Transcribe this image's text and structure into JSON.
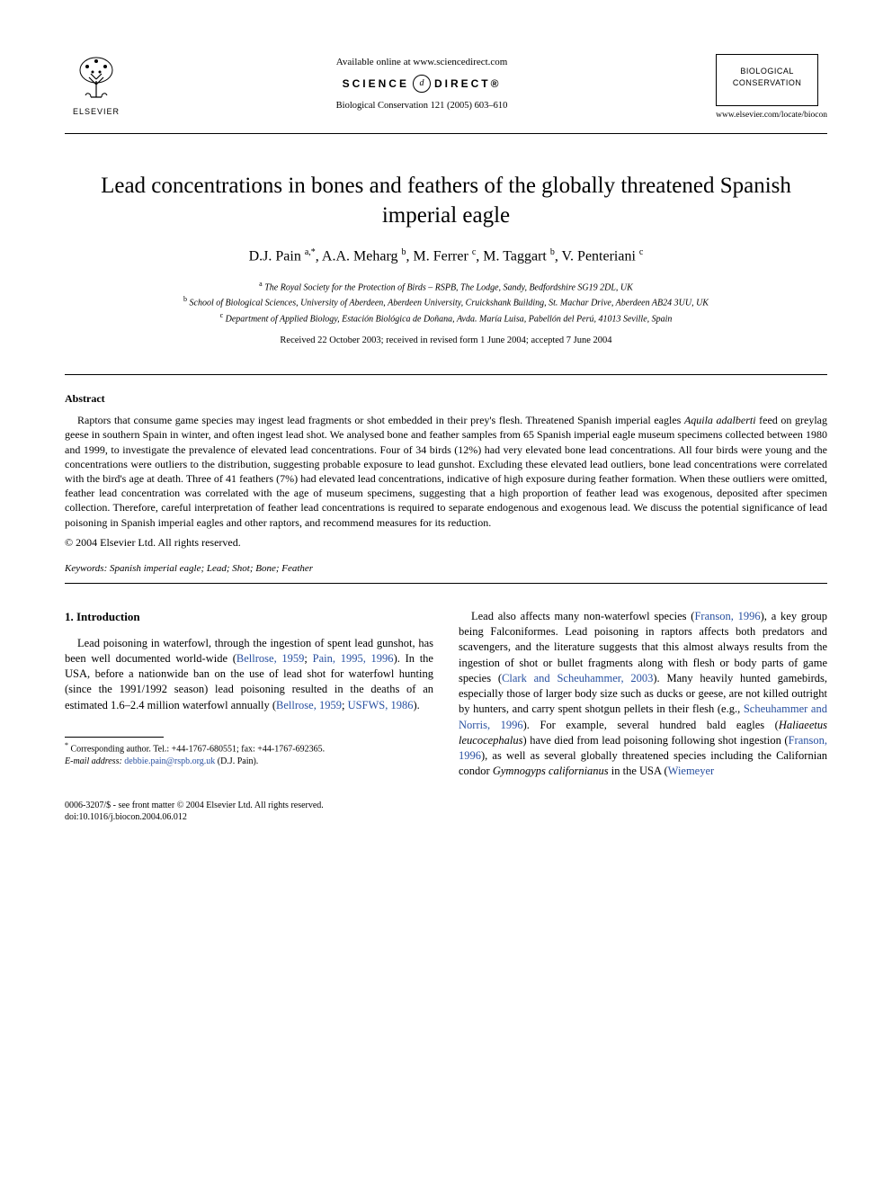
{
  "header": {
    "publisher_name": "ELSEVIER",
    "available_online": "Available online at www.sciencedirect.com",
    "sd_left": "SCIENCE",
    "sd_at": "d",
    "sd_right": "DIRECT®",
    "journal_ref": "Biological Conservation 121 (2005) 603–610",
    "journal_box_line1": "BIOLOGICAL",
    "journal_box_line2": "CONSERVATION",
    "journal_url": "www.elsevier.com/locate/biocon"
  },
  "title": "Lead concentrations in bones and feathers of the globally threatened Spanish imperial eagle",
  "authors_html": "D.J. Pain <sup>a,*</sup>, A.A. Meharg <sup>b</sup>, M. Ferrer <sup>c</sup>, M. Taggart <sup>b</sup>, V. Penteriani <sup>c</sup>",
  "affiliations": {
    "a": "The Royal Society for the Protection of Birds – RSPB, The Lodge, Sandy, Bedfordshire SG19 2DL, UK",
    "b": "School of Biological Sciences, University of Aberdeen, Aberdeen University, Cruickshank Building, St. Machar Drive, Aberdeen AB24 3UU, UK",
    "c": "Department of Applied Biology, Estación Biológica de Doñana, Avda. María Luisa, Pabellón del Perú, 41013 Seville, Spain"
  },
  "received": "Received 22 October 2003; received in revised form 1 June 2004; accepted 7 June 2004",
  "abstract": {
    "heading": "Abstract",
    "body": "Raptors that consume game species may ingest lead fragments or shot embedded in their prey's flesh. Threatened Spanish imperial eagles Aquila adalberti feed on greylag geese in southern Spain in winter, and often ingest lead shot. We analysed bone and feather samples from 65 Spanish imperial eagle museum specimens collected between 1980 and 1999, to investigate the prevalence of elevated lead concentrations. Four of 34 birds (12%) had very elevated bone lead concentrations. All four birds were young and the concentrations were outliers to the distribution, suggesting probable exposure to lead gunshot. Excluding these elevated lead outliers, bone lead concentrations were correlated with the bird's age at death. Three of 41 feathers (7%) had elevated lead concentrations, indicative of high exposure during feather formation. When these outliers were omitted, feather lead concentration was correlated with the age of museum specimens, suggesting that a high proportion of feather lead was exogenous, deposited after specimen collection. Therefore, careful interpretation of feather lead concentrations is required to separate endogenous and exogenous lead. We discuss the potential significance of lead poisoning in Spanish imperial eagles and other raptors, and recommend measures for its reduction.",
    "copyright": "© 2004 Elsevier Ltd. All rights reserved."
  },
  "keywords": {
    "label": "Keywords:",
    "value": "Spanish imperial eagle; Lead; Shot; Bone; Feather"
  },
  "section1": {
    "heading": "1. Introduction",
    "col1_p1_pre": "Lead poisoning in waterfowl, through the ingestion of spent lead gunshot, has been well documented world-wide (",
    "col1_cite1": "Bellrose, 1959",
    "col1_sep1": "; ",
    "col1_cite2": "Pain, 1995, 1996",
    "col1_p1_mid": "). In the USA, before a nationwide ban on the use of lead shot for waterfowl hunting (since the 1991/1992 season) lead poisoning resulted in the deaths of an estimated 1.6–2.4 million waterfowl annually (",
    "col1_cite3": "Bellrose, 1959",
    "col1_sep2": "; ",
    "col1_cite4": "USFWS, 1986",
    "col1_p1_end": ").",
    "col2_p1_pre": "Lead also affects many non-waterfowl species (",
    "col2_cite1": "Franson, 1996",
    "col2_p1_mid1": "), a key group being Falconiformes. Lead poisoning in raptors affects both predators and scavengers, and the literature suggests that this almost always results from the ingestion of shot or bullet fragments along with flesh or body parts of game species (",
    "col2_cite2": "Clark and Scheuhammer, 2003",
    "col2_p1_mid2": "). Many heavily hunted gamebirds, especially those of larger body size such as ducks or geese, are not killed outright by hunters, and carry spent shotgun pellets in their flesh (e.g., ",
    "col2_cite3": "Scheuhammer and Norris, 1996",
    "col2_p1_mid3": "). For example, several hundred bald eagles (",
    "col2_species1": "Haliaeetus leucocephalus",
    "col2_p1_mid4": ") have died from lead poisoning following shot ingestion (",
    "col2_cite4": "Franson, 1996",
    "col2_p1_mid5": "), as well as several globally threatened species including the Californian condor ",
    "col2_species2": "Gymnogyps californianus",
    "col2_p1_mid6": " in the USA (",
    "col2_cite5": "Wiemeyer"
  },
  "footnote": {
    "corr": "Corresponding author. Tel.: +44-1767-680551; fax: +44-1767-692365.",
    "email_label": "E-mail address:",
    "email": "debbie.pain@rspb.org.uk",
    "email_who": "(D.J. Pain)."
  },
  "bottom": {
    "issn": "0006-3207/$ - see front matter © 2004 Elsevier Ltd. All rights reserved.",
    "doi": "doi:10.1016/j.biocon.2004.06.012"
  },
  "colors": {
    "citation": "#2850a0",
    "text": "#000000",
    "background": "#ffffff"
  }
}
